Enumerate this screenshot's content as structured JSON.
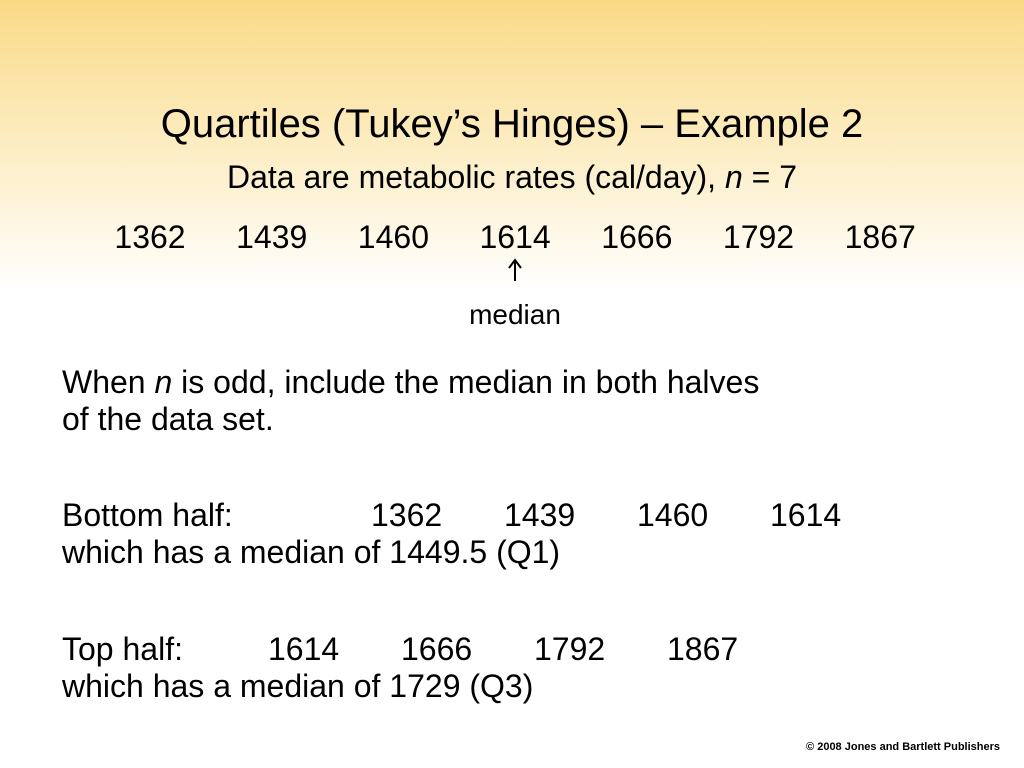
{
  "title": "Quartiles (Tukey’s Hinges) – Example 2",
  "subtitle": {
    "before": "Data are metabolic rates (cal/day),",
    "var": "n",
    "after": "= 7"
  },
  "data": [
    1362,
    1439,
    1460,
    1614,
    1666,
    1792,
    1867
  ],
  "median_label": "median",
  "paragraph": {
    "before": "When",
    "var": "n",
    "after": "is odd, include the median in both halves",
    "line2": "of the data set."
  },
  "bottom_half": {
    "label": "Bottom half:",
    "values": [
      1362,
      1439,
      1460,
      1614
    ],
    "note": "which has a median of 1449.5 (Q1)"
  },
  "top_half": {
    "label": "Top half:",
    "values": [
      1614,
      1666,
      1792,
      1867
    ],
    "note": "which has a median of 1729 (Q3)"
  },
  "footer": "© 2008 Jones and Bartlett Publishers"
}
